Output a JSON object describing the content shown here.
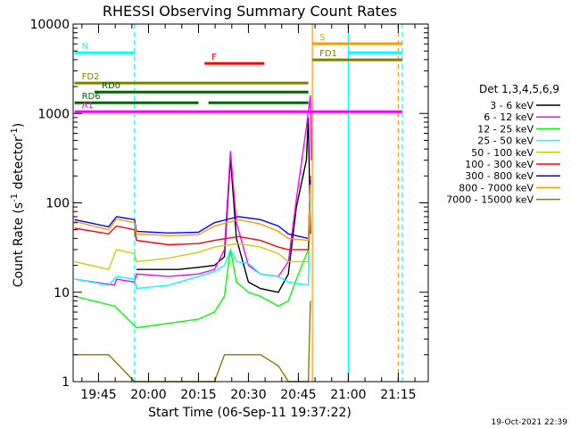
{
  "chart_data": {
    "type": "line",
    "title": "RHESSI Observing Summary Count Rates",
    "xlabel": "Start Time (06-Sep-11 19:37:22)",
    "ylabel_main": "Count Rate (s",
    "ylabel_sup1": "-1",
    "ylabel_mid": " detector",
    "ylabel_sup2": "-1",
    "ylabel_end": ")",
    "footer": "19-Oct-2021 22:39",
    "x_axis": {
      "min": 19.6228,
      "max": 21.4,
      "unit": "hour",
      "ticks": [
        {
          "v": 19.75,
          "t": "19:45"
        },
        {
          "v": 20.0,
          "t": "20:00"
        },
        {
          "v": 20.25,
          "t": "20:15"
        },
        {
          "v": 20.5,
          "t": "20:30"
        },
        {
          "v": 20.75,
          "t": "20:45"
        },
        {
          "v": 21.0,
          "t": "21:00"
        },
        {
          "v": 21.25,
          "t": "21:15"
        }
      ]
    },
    "y_axis": {
      "scale": "log",
      "min": 1,
      "max": 10000,
      "ticks": [
        {
          "v": 1,
          "t": "1"
        },
        {
          "v": 10,
          "t": "10"
        },
        {
          "v": 100,
          "t": "100"
        },
        {
          "v": 1000,
          "t": "1000"
        },
        {
          "v": 10000,
          "t": "10000"
        }
      ]
    },
    "legend_title": "Det 1,3,4,5,6,9",
    "legend_position": "right",
    "series": [
      {
        "name": "3 - 6 keV",
        "color": "#000000",
        "points": [
          [
            19.63,
            null
          ],
          [
            19.93,
            null
          ],
          [
            19.94,
            18
          ],
          [
            20.15,
            18
          ],
          [
            20.25,
            19
          ],
          [
            20.33,
            20
          ],
          [
            20.38,
            25
          ],
          [
            20.41,
            320
          ],
          [
            20.44,
            40
          ],
          [
            20.5,
            13
          ],
          [
            20.56,
            11
          ],
          [
            20.65,
            10
          ],
          [
            20.7,
            16
          ],
          [
            20.74,
            90
          ],
          [
            20.79,
            300
          ],
          [
            20.8,
            900
          ],
          [
            20.81,
            45
          ]
        ]
      },
      {
        "name": "6 - 12 keV",
        "color": "#ff00ff",
        "points": [
          [
            19.63,
            14
          ],
          [
            19.83,
            12
          ],
          [
            19.84,
            14
          ],
          [
            19.93,
            13
          ],
          [
            19.94,
            16
          ],
          [
            20.1,
            15
          ],
          [
            20.25,
            16
          ],
          [
            20.33,
            18
          ],
          [
            20.38,
            30
          ],
          [
            20.41,
            380
          ],
          [
            20.44,
            60
          ],
          [
            20.5,
            20
          ],
          [
            20.56,
            16
          ],
          [
            20.65,
            15
          ],
          [
            20.7,
            22
          ],
          [
            20.74,
            110
          ],
          [
            20.79,
            700
          ],
          [
            20.81,
            1600
          ],
          [
            20.815,
            300
          ]
        ]
      },
      {
        "name": "12 - 25 keV",
        "color": "#00ff00",
        "points": [
          [
            19.63,
            9
          ],
          [
            19.83,
            7
          ],
          [
            19.94,
            4
          ],
          [
            20.25,
            5
          ],
          [
            20.33,
            6
          ],
          [
            20.38,
            9
          ],
          [
            20.41,
            30
          ],
          [
            20.44,
            13
          ],
          [
            20.5,
            10
          ],
          [
            20.56,
            9
          ],
          [
            20.65,
            7
          ],
          [
            20.7,
            8
          ],
          [
            20.74,
            14
          ],
          [
            20.8,
            30
          ],
          [
            20.81,
            200
          ]
        ]
      },
      {
        "name": "25 - 50 keV",
        "color": "#00ffff",
        "points": [
          [
            19.63,
            14
          ],
          [
            19.8,
            12
          ],
          [
            19.84,
            15
          ],
          [
            19.93,
            14
          ],
          [
            19.94,
            11
          ],
          [
            20.1,
            12
          ],
          [
            20.25,
            15
          ],
          [
            20.33,
            17
          ],
          [
            20.38,
            20
          ],
          [
            20.41,
            30
          ],
          [
            20.44,
            22
          ],
          [
            20.5,
            21
          ],
          [
            20.56,
            16
          ],
          [
            20.65,
            15
          ],
          [
            20.7,
            13
          ],
          [
            20.8,
            12
          ],
          [
            20.81,
            120
          ]
        ]
      },
      {
        "name": "50 - 100 keV",
        "color": "#cccc00",
        "points": [
          [
            19.63,
            22
          ],
          [
            19.8,
            18
          ],
          [
            19.84,
            30
          ],
          [
            19.93,
            27
          ],
          [
            19.94,
            22
          ],
          [
            20.1,
            24
          ],
          [
            20.25,
            28
          ],
          [
            20.33,
            32
          ],
          [
            20.45,
            35
          ],
          [
            20.56,
            32
          ],
          [
            20.65,
            27
          ],
          [
            20.7,
            22
          ],
          [
            20.8,
            22
          ],
          [
            20.81,
            150
          ]
        ]
      },
      {
        "name": "100 - 300 keV",
        "color": "#ff0000",
        "points": [
          [
            19.63,
            52
          ],
          [
            19.8,
            45
          ],
          [
            19.84,
            55
          ],
          [
            19.93,
            50
          ],
          [
            19.94,
            38
          ],
          [
            20.1,
            34
          ],
          [
            20.25,
            35
          ],
          [
            20.33,
            38
          ],
          [
            20.45,
            42
          ],
          [
            20.56,
            38
          ],
          [
            20.65,
            32
          ],
          [
            20.7,
            30
          ],
          [
            20.8,
            30
          ],
          [
            20.81,
            200
          ]
        ]
      },
      {
        "name": "300 - 800 keV",
        "color": "#0000ff",
        "points": [
          [
            19.63,
            65
          ],
          [
            19.8,
            54
          ],
          [
            19.84,
            70
          ],
          [
            19.93,
            65
          ],
          [
            19.94,
            48
          ],
          [
            20.1,
            46
          ],
          [
            20.25,
            47
          ],
          [
            20.33,
            60
          ],
          [
            20.45,
            70
          ],
          [
            20.56,
            65
          ],
          [
            20.65,
            55
          ],
          [
            20.7,
            45
          ],
          [
            20.8,
            40
          ],
          [
            20.81,
            180
          ]
        ]
      },
      {
        "name": "800 - 7000 keV",
        "color": "#ff9900",
        "points": [
          [
            19.63,
            62
          ],
          [
            19.8,
            50
          ],
          [
            19.84,
            66
          ],
          [
            19.93,
            60
          ],
          [
            19.94,
            45
          ],
          [
            20.1,
            43
          ],
          [
            20.25,
            44
          ],
          [
            20.33,
            55
          ],
          [
            20.45,
            65
          ],
          [
            20.56,
            58
          ],
          [
            20.65,
            48
          ],
          [
            20.7,
            40
          ],
          [
            20.8,
            38
          ],
          [
            20.81,
            160
          ]
        ]
      },
      {
        "name": "7000 - 15000 keV",
        "color": "#808000",
        "points": [
          [
            19.63,
            2
          ],
          [
            19.8,
            2
          ],
          [
            19.93,
            1
          ],
          [
            20.33,
            1
          ],
          [
            20.38,
            2
          ],
          [
            20.56,
            2
          ],
          [
            20.65,
            1.5
          ],
          [
            20.7,
            1
          ],
          [
            20.8,
            1
          ],
          [
            20.81,
            8
          ]
        ]
      }
    ],
    "horizontal_bars": [
      {
        "label": "N",
        "color": "#00ffff",
        "y_frac": 0.08,
        "segments": [
          [
            19.63,
            19.93
          ],
          [
            21.0,
            21.27
          ]
        ]
      },
      {
        "label": "F",
        "color": "#ff0000",
        "y_frac": 0.11,
        "segments": [
          [
            20.28,
            20.58
          ]
        ]
      },
      {
        "label": "S",
        "color": "#ff9900",
        "y_frac": 0.055,
        "segments": [
          [
            20.82,
            21.27
          ]
        ]
      },
      {
        "label": "FD1",
        "color": "#808000",
        "y_frac": 0.1,
        "segments": [
          [
            20.82,
            21.27
          ]
        ]
      },
      {
        "label": "FD2",
        "color": "#808000",
        "y_frac": 0.165,
        "segments": [
          [
            19.63,
            20.8
          ]
        ]
      },
      {
        "label": "RD0",
        "color": "#006600",
        "y_frac": 0.19,
        "segments": [
          [
            19.73,
            20.8
          ]
        ]
      },
      {
        "label": "RD6",
        "color": "#006600",
        "y_frac": 0.22,
        "segments": [
          [
            19.63,
            20.25
          ],
          [
            20.3,
            20.8
          ]
        ]
      },
      {
        "label": "A1",
        "color": "#ff00ff",
        "y_frac": 0.245,
        "segments": [
          [
            19.63,
            21.27
          ]
        ]
      }
    ],
    "vertical_lines": [
      {
        "x": 19.93,
        "color": "#00ffff",
        "dashed": true
      },
      {
        "x": 20.82,
        "color": "#ff9900",
        "dashed": false
      },
      {
        "x": 21.0,
        "color": "#00ffff",
        "dashed": false
      },
      {
        "x": 21.25,
        "color": "#ff9900",
        "dashed": true
      },
      {
        "x": 21.27,
        "color": "#00ffff",
        "dashed": true
      }
    ]
  }
}
